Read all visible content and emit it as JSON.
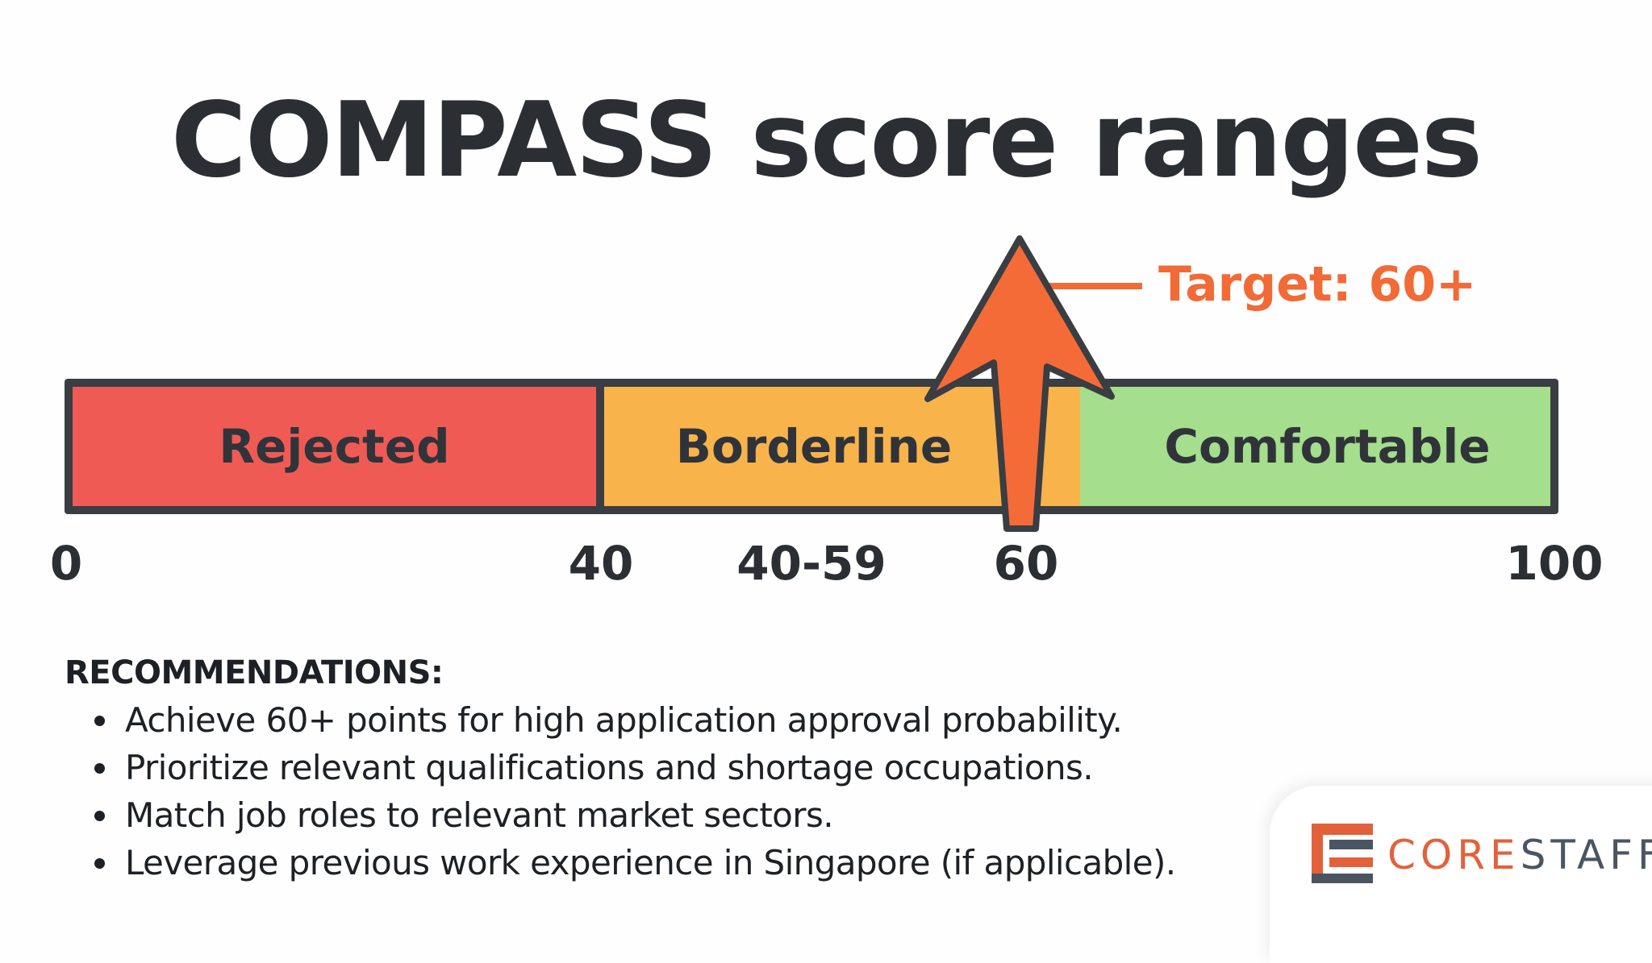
{
  "title": "COMPASS score ranges",
  "scale": {
    "min": 0,
    "max": 100,
    "segments": [
      {
        "label": "Rejected",
        "from": 0,
        "to": 40,
        "color": "#f05a55"
      },
      {
        "label": "Borderline",
        "from": 40,
        "to": 60,
        "color": "#f8b34b"
      },
      {
        "label": "Comfortable",
        "from": 60,
        "to": 100,
        "color": "#a5de8c"
      }
    ],
    "tick_labels": [
      "0",
      "40",
      "40-59",
      "60",
      "100"
    ]
  },
  "target": {
    "label": "Target: 60+",
    "value": 60,
    "color": "#f26a36"
  },
  "recommendations": {
    "heading": "RECOMMENDATIONS:",
    "items": [
      "Achieve 60+ points for high application approval probability.",
      "Prioritize relevant qualifications and shortage occupations.",
      "Match job roles to relevant market sectors.",
      "Leverage previous work experience in Singapore (if applicable)."
    ]
  },
  "logo": {
    "part1": "CORE",
    "part2": "STAFF",
    "accent_color": "#e3613a",
    "dark_color": "#4a5563"
  }
}
